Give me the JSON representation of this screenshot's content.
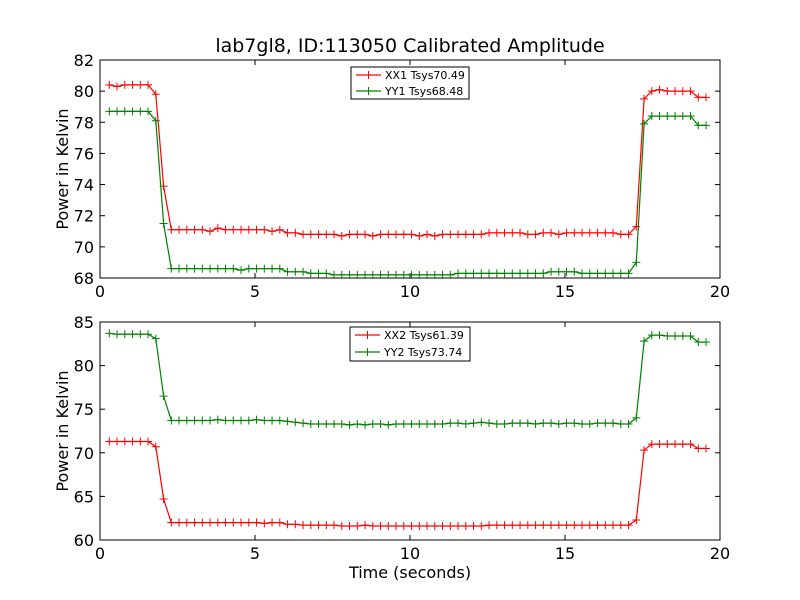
{
  "figure_title": "lab7gl8, ID:113050 Calibrated Amplitude",
  "chart_data": [
    {
      "type": "line",
      "ylabel": "Power in Kelvin",
      "xlabel": "",
      "xlim": [
        0,
        20
      ],
      "ylim": [
        68,
        82
      ],
      "xticks": [
        0,
        5,
        10,
        15,
        20
      ],
      "yticks": [
        68,
        70,
        72,
        74,
        76,
        78,
        80,
        82
      ],
      "legend_position": "top-center",
      "grid": false,
      "series": [
        {
          "name": "XX1 Tsys70.49",
          "color": "#ff0000",
          "x": [
            0.3,
            0.55,
            0.8,
            1.05,
            1.3,
            1.55,
            1.8,
            2.05,
            2.3,
            2.55,
            2.8,
            3.05,
            3.3,
            3.55,
            3.8,
            4.05,
            4.3,
            4.55,
            4.8,
            5.05,
            5.3,
            5.55,
            5.8,
            6.05,
            6.3,
            6.55,
            6.8,
            7.05,
            7.3,
            7.55,
            7.8,
            8.05,
            8.3,
            8.55,
            8.8,
            9.05,
            9.3,
            9.55,
            9.8,
            10.05,
            10.3,
            10.55,
            10.8,
            11.05,
            11.3,
            11.55,
            11.8,
            12.05,
            12.3,
            12.55,
            12.8,
            13.05,
            13.3,
            13.55,
            13.8,
            14.05,
            14.3,
            14.55,
            14.8,
            15.05,
            15.3,
            15.55,
            15.8,
            16.05,
            16.3,
            16.55,
            16.8,
            17.05,
            17.3,
            17.55,
            17.8,
            18.05,
            18.3,
            18.55,
            18.8,
            19.05,
            19.3,
            19.55
          ],
          "y": [
            80.4,
            80.3,
            80.4,
            80.4,
            80.4,
            80.4,
            79.8,
            73.9,
            71.1,
            71.1,
            71.1,
            71.1,
            71.1,
            71.0,
            71.2,
            71.1,
            71.1,
            71.1,
            71.1,
            71.1,
            71.1,
            71.0,
            71.1,
            70.9,
            70.9,
            70.8,
            70.8,
            70.8,
            70.8,
            70.8,
            70.7,
            70.8,
            70.8,
            70.8,
            70.7,
            70.8,
            70.8,
            70.8,
            70.8,
            70.8,
            70.7,
            70.8,
            70.7,
            70.8,
            70.8,
            70.8,
            70.8,
            70.8,
            70.8,
            70.9,
            70.9,
            70.9,
            70.9,
            70.9,
            70.8,
            70.8,
            70.9,
            70.9,
            70.8,
            70.9,
            70.9,
            70.9,
            70.9,
            70.9,
            70.9,
            70.9,
            70.8,
            70.8,
            71.3,
            79.5,
            80.0,
            80.1,
            80.0,
            80.0,
            80.0,
            80.0,
            79.6,
            79.6
          ]
        },
        {
          "name": "YY1 Tsys68.48",
          "color": "#008000",
          "x": [
            0.3,
            0.55,
            0.8,
            1.05,
            1.3,
            1.55,
            1.8,
            2.05,
            2.3,
            2.55,
            2.8,
            3.05,
            3.3,
            3.55,
            3.8,
            4.05,
            4.3,
            4.55,
            4.8,
            5.05,
            5.3,
            5.55,
            5.8,
            6.05,
            6.3,
            6.55,
            6.8,
            7.05,
            7.3,
            7.55,
            7.8,
            8.05,
            8.3,
            8.55,
            8.8,
            9.05,
            9.3,
            9.55,
            9.8,
            10.05,
            10.3,
            10.55,
            10.8,
            11.05,
            11.3,
            11.55,
            11.8,
            12.05,
            12.3,
            12.55,
            12.8,
            13.05,
            13.3,
            13.55,
            13.8,
            14.05,
            14.3,
            14.55,
            14.8,
            15.05,
            15.3,
            15.55,
            15.8,
            16.05,
            16.3,
            16.55,
            16.8,
            17.05,
            17.3,
            17.55,
            17.8,
            18.05,
            18.3,
            18.55,
            18.8,
            19.05,
            19.3,
            19.55
          ],
          "y": [
            78.7,
            78.7,
            78.7,
            78.7,
            78.7,
            78.7,
            78.1,
            71.5,
            68.6,
            68.6,
            68.6,
            68.6,
            68.6,
            68.6,
            68.6,
            68.6,
            68.6,
            68.5,
            68.6,
            68.6,
            68.6,
            68.6,
            68.6,
            68.4,
            68.4,
            68.4,
            68.3,
            68.3,
            68.3,
            68.2,
            68.2,
            68.2,
            68.2,
            68.2,
            68.2,
            68.2,
            68.2,
            68.2,
            68.2,
            68.2,
            68.2,
            68.2,
            68.2,
            68.2,
            68.2,
            68.3,
            68.3,
            68.3,
            68.3,
            68.3,
            68.3,
            68.3,
            68.3,
            68.3,
            68.3,
            68.3,
            68.3,
            68.4,
            68.4,
            68.4,
            68.4,
            68.3,
            68.3,
            68.3,
            68.3,
            68.3,
            68.3,
            68.3,
            69.0,
            77.9,
            78.4,
            78.4,
            78.4,
            78.4,
            78.4,
            78.4,
            77.8,
            77.8
          ]
        }
      ]
    },
    {
      "type": "line",
      "ylabel": "Power in Kelvin",
      "xlabel": "Time (seconds)",
      "xlim": [
        0,
        20
      ],
      "ylim": [
        60,
        85
      ],
      "xticks": [
        0,
        5,
        10,
        15,
        20
      ],
      "yticks": [
        60,
        65,
        70,
        75,
        80,
        85
      ],
      "legend_position": "top-center",
      "grid": false,
      "series": [
        {
          "name": "XX2 Tsys61.39",
          "color": "#ff0000",
          "x": [
            0.3,
            0.55,
            0.8,
            1.05,
            1.3,
            1.55,
            1.8,
            2.05,
            2.3,
            2.55,
            2.8,
            3.05,
            3.3,
            3.55,
            3.8,
            4.05,
            4.3,
            4.55,
            4.8,
            5.05,
            5.3,
            5.55,
            5.8,
            6.05,
            6.3,
            6.55,
            6.8,
            7.05,
            7.3,
            7.55,
            7.8,
            8.05,
            8.3,
            8.55,
            8.8,
            9.05,
            9.3,
            9.55,
            9.8,
            10.05,
            10.3,
            10.55,
            10.8,
            11.05,
            11.3,
            11.55,
            11.8,
            12.05,
            12.3,
            12.55,
            12.8,
            13.05,
            13.3,
            13.55,
            13.8,
            14.05,
            14.3,
            14.55,
            14.8,
            15.05,
            15.3,
            15.55,
            15.8,
            16.05,
            16.3,
            16.55,
            16.8,
            17.05,
            17.3,
            17.55,
            17.8,
            18.05,
            18.3,
            18.55,
            18.8,
            19.05,
            19.3,
            19.55
          ],
          "y": [
            71.3,
            71.3,
            71.3,
            71.3,
            71.3,
            71.3,
            70.7,
            64.7,
            62.0,
            62.0,
            62.0,
            62.0,
            62.0,
            62.0,
            62.0,
            62.0,
            62.0,
            62.0,
            62.0,
            62.0,
            61.9,
            62.0,
            62.0,
            61.8,
            61.8,
            61.7,
            61.7,
            61.7,
            61.7,
            61.7,
            61.6,
            61.6,
            61.6,
            61.7,
            61.6,
            61.6,
            61.6,
            61.6,
            61.6,
            61.6,
            61.6,
            61.6,
            61.6,
            61.6,
            61.6,
            61.6,
            61.6,
            61.6,
            61.6,
            61.7,
            61.7,
            61.7,
            61.7,
            61.7,
            61.7,
            61.7,
            61.7,
            61.7,
            61.7,
            61.7,
            61.7,
            61.7,
            61.7,
            61.7,
            61.7,
            61.7,
            61.7,
            61.7,
            62.3,
            70.3,
            71.0,
            71.0,
            71.0,
            71.0,
            71.0,
            71.0,
            70.5,
            70.5
          ]
        },
        {
          "name": "YY2 Tsys73.74",
          "color": "#008000",
          "x": [
            0.3,
            0.55,
            0.8,
            1.05,
            1.3,
            1.55,
            1.8,
            2.05,
            2.3,
            2.55,
            2.8,
            3.05,
            3.3,
            3.55,
            3.8,
            4.05,
            4.3,
            4.55,
            4.8,
            5.05,
            5.3,
            5.55,
            5.8,
            6.05,
            6.3,
            6.55,
            6.8,
            7.05,
            7.3,
            7.55,
            7.8,
            8.05,
            8.3,
            8.55,
            8.8,
            9.05,
            9.3,
            9.55,
            9.8,
            10.05,
            10.3,
            10.55,
            10.8,
            11.05,
            11.3,
            11.55,
            11.8,
            12.05,
            12.3,
            12.55,
            12.8,
            13.05,
            13.3,
            13.55,
            13.8,
            14.05,
            14.3,
            14.55,
            14.8,
            15.05,
            15.3,
            15.55,
            15.8,
            16.05,
            16.3,
            16.55,
            16.8,
            17.05,
            17.3,
            17.55,
            17.8,
            18.05,
            18.3,
            18.55,
            18.8,
            19.05,
            19.3,
            19.55
          ],
          "y": [
            83.7,
            83.6,
            83.6,
            83.6,
            83.6,
            83.6,
            83.1,
            76.5,
            73.7,
            73.7,
            73.7,
            73.7,
            73.7,
            73.7,
            73.8,
            73.7,
            73.7,
            73.7,
            73.7,
            73.8,
            73.7,
            73.7,
            73.7,
            73.6,
            73.5,
            73.4,
            73.3,
            73.3,
            73.3,
            73.3,
            73.3,
            73.2,
            73.3,
            73.2,
            73.3,
            73.3,
            73.2,
            73.3,
            73.3,
            73.3,
            73.3,
            73.3,
            73.3,
            73.3,
            73.4,
            73.4,
            73.3,
            73.4,
            73.5,
            73.4,
            73.3,
            73.3,
            73.4,
            73.4,
            73.4,
            73.3,
            73.4,
            73.4,
            73.3,
            73.4,
            73.4,
            73.3,
            73.3,
            73.4,
            73.4,
            73.4,
            73.3,
            73.3,
            74.0,
            82.8,
            83.5,
            83.5,
            83.4,
            83.4,
            83.4,
            83.4,
            82.7,
            82.7
          ]
        }
      ]
    }
  ]
}
